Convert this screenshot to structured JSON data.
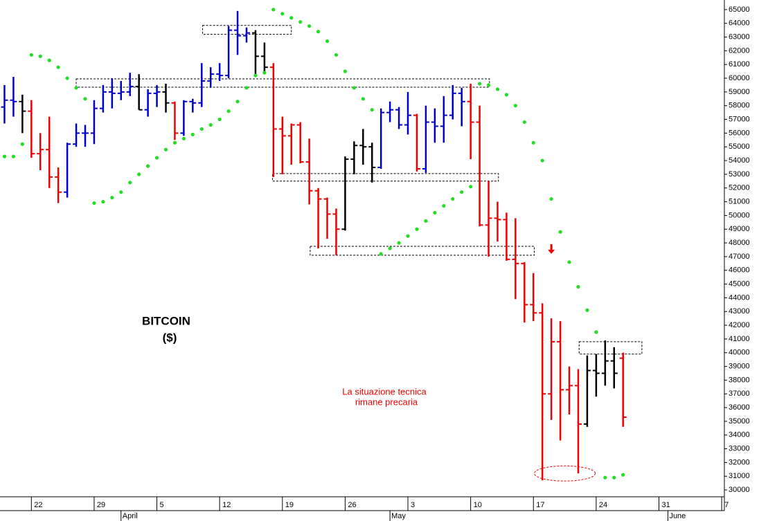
{
  "chart_data": {
    "type": "ohlc",
    "title": "BITCOIN",
    "unit": "($)",
    "annotation": [
      "La situazione tecnica",
      "rimane precaria"
    ],
    "x": [
      -3,
      -2,
      -1,
      0,
      1,
      2,
      3,
      4,
      5,
      6,
      7,
      8,
      9,
      10,
      11,
      12,
      13,
      14,
      15,
      16,
      17,
      18,
      19,
      20,
      21,
      22,
      23,
      24,
      25,
      26,
      27,
      28,
      29,
      30,
      31,
      32,
      33,
      34,
      35,
      36,
      37,
      38,
      39,
      40,
      41,
      42,
      43,
      44,
      45,
      46,
      47,
      48,
      49,
      50,
      51,
      52,
      53,
      54,
      55,
      56,
      57,
      58,
      59,
      60,
      61,
      62,
      63,
      64,
      65,
      66
    ],
    "ohlc": {
      "open": [
        57900,
        58400,
        58300,
        57600,
        54500,
        54800,
        52800,
        51700,
        55200,
        56000,
        56000,
        57800,
        59000,
        58900,
        59000,
        59400,
        57700,
        58900,
        59000,
        58200,
        56000,
        58300,
        58200,
        59800,
        60300,
        60200,
        63500,
        63100,
        63300,
        61600,
        60800,
        56300,
        55800,
        56600,
        53900,
        51800,
        51200,
        50100,
        49000,
        54100,
        55100,
        55000,
        53500,
        57500,
        57700,
        56600,
        57300,
        53400,
        56800,
        56500,
        57300,
        58900,
        58300,
        56800,
        49300,
        49800,
        49700,
        46800,
        46500,
        43500,
        42900,
        37000,
        40800,
        37300,
        37600,
        34800,
        38700,
        38500,
        39400,
        39600
      ],
      "high": [
        59500,
        60100,
        58800,
        58400,
        56000,
        57200,
        53500,
        55300,
        56700,
        56600,
        58400,
        59500,
        60000,
        59800,
        60400,
        60300,
        59200,
        59500,
        59600,
        58300,
        58400,
        58500,
        61100,
        60800,
        61100,
        63800,
        64900,
        63700,
        63500,
        62600,
        61100,
        57200,
        56700,
        56800,
        55600,
        52000,
        51300,
        50500,
        54300,
        55400,
        56300,
        55300,
        57800,
        58300,
        57900,
        59000,
        57400,
        58000,
        57800,
        58700,
        59500,
        59300,
        59600,
        58000,
        52500,
        51000,
        50200,
        49800,
        46600,
        45800,
        43600,
        42500,
        42300,
        39000,
        38800,
        39800,
        39900,
        40900,
        40400,
        40000
      ],
      "low": [
        56700,
        57200,
        56000,
        54200,
        53300,
        52000,
        50900,
        51300,
        55000,
        55000,
        55200,
        57500,
        57800,
        58400,
        58700,
        57700,
        57200,
        57900,
        57500,
        55500,
        55800,
        57500,
        57900,
        59300,
        59800,
        60000,
        61700,
        62600,
        60200,
        60300,
        52800,
        53000,
        53700,
        53800,
        50800,
        47600,
        48300,
        47100,
        48900,
        53000,
        53700,
        52400,
        53400,
        56800,
        56300,
        55900,
        53200,
        53100,
        55300,
        55300,
        57000,
        56500,
        54100,
        49200,
        47000,
        48100,
        46700,
        43900,
        42200,
        42300,
        30700,
        35100,
        33600,
        35500,
        31200,
        34600,
        36800,
        37600,
        37400,
        34600
      ],
      "close": [
        58400,
        58300,
        57600,
        54500,
        54800,
        52800,
        51700,
        55200,
        56000,
        56000,
        57800,
        59000,
        58900,
        59000,
        59400,
        57700,
        58900,
        59000,
        58200,
        56000,
        58300,
        58200,
        59800,
        60300,
        60200,
        63500,
        63100,
        63300,
        61600,
        60800,
        56300,
        55800,
        56600,
        53900,
        51800,
        51200,
        50100,
        49000,
        54100,
        55100,
        55000,
        53500,
        57500,
        57700,
        56600,
        57300,
        53400,
        56800,
        56500,
        57300,
        58900,
        58300,
        56800,
        49300,
        49800,
        49700,
        46800,
        46500,
        43500,
        42900,
        37000,
        40800,
        37300,
        37600,
        34800,
        38700,
        38500,
        39400,
        38500,
        35300
      ],
      "colors": [
        "#0000cc",
        "#0000cc",
        "#000000",
        "#ee0000",
        "#ee0000",
        "#ee0000",
        "#ee0000",
        "#0000cc",
        "#0000cc",
        "#0000cc",
        "#0000cc",
        "#0000cc",
        "#0000cc",
        "#0000cc",
        "#0000cc",
        "#000000",
        "#0000cc",
        "#0000cc",
        "#000000",
        "#ee0000",
        "#0000cc",
        "#0000cc",
        "#0000cc",
        "#0000cc",
        "#0000cc",
        "#0000cc",
        "#0000cc",
        "#0000cc",
        "#000000",
        "#000000",
        "#ee0000",
        "#ee0000",
        "#ee0000",
        "#ee0000",
        "#ee0000",
        "#ee0000",
        "#ee0000",
        "#ee0000",
        "#000000",
        "#000000",
        "#000000",
        "#000000",
        "#0000cc",
        "#0000cc",
        "#0000cc",
        "#0000cc",
        "#ee0000",
        "#0000cc",
        "#0000cc",
        "#0000cc",
        "#0000cc",
        "#0000cc",
        "#ee0000",
        "#ee0000",
        "#ee0000",
        "#ee0000",
        "#ee0000",
        "#ee0000",
        "#ee0000",
        "#ee0000",
        "#ee0000",
        "#ee0000",
        "#ee0000",
        "#ee0000",
        "#ee0000",
        "#000000",
        "#000000",
        "#000000",
        "#000000",
        "#ee0000"
      ]
    },
    "sar": {
      "color": "#22dd22",
      "values": [
        54300,
        54300,
        55200,
        61700,
        61600,
        61300,
        60800,
        60000,
        59300,
        58500,
        50900,
        51000,
        51300,
        51700,
        52400,
        53000,
        53600,
        54200,
        54800,
        55300,
        55600,
        55900,
        56300,
        56600,
        57000,
        57600,
        58300,
        59300,
        60200,
        60400,
        65000,
        64700,
        64400,
        64100,
        63800,
        63400,
        62700,
        61700,
        60500,
        59300,
        58500,
        57700,
        47200,
        47600,
        48000,
        48500,
        49000,
        49600,
        50200,
        50700,
        51200,
        51700,
        52100,
        59600,
        59500,
        59200,
        58800,
        58000,
        56800,
        55300,
        54000,
        51200,
        48800,
        46600,
        44800,
        43100,
        41500,
        30900,
        30900,
        31100
      ]
    },
    "zones": [
      {
        "x": [
          19.1,
          29
        ],
        "y": [
          63200,
          63850
        ]
      },
      {
        "x": [
          5,
          51.1
        ],
        "y": [
          59350,
          59950
        ]
      },
      {
        "x": [
          26.9,
          52.1
        ],
        "y": [
          52500,
          53050
        ]
      },
      {
        "x": [
          31.1,
          56.1
        ],
        "y": [
          47100,
          47750
        ]
      },
      {
        "x": [
          61.1,
          68.1
        ],
        "y": [
          39900,
          40800
        ]
      }
    ],
    "ellipse": {
      "x": [
        56.1,
        62.9
      ],
      "y": [
        30650,
        31750
      ]
    },
    "arrow": {
      "x": 58,
      "y": [
        47900,
        47200
      ]
    },
    "xlim": [
      -3.5,
      77.3
    ],
    "ylim": [
      29500,
      65700
    ],
    "xticks": [
      {
        "value": 0,
        "label": "22"
      },
      {
        "value": 7,
        "label": "29"
      },
      {
        "value": 14,
        "label": "5"
      },
      {
        "value": 21,
        "label": "12"
      },
      {
        "value": 28,
        "label": "19"
      },
      {
        "value": 35,
        "label": "26"
      },
      {
        "value": 42,
        "label": "3"
      },
      {
        "value": 49,
        "label": "10"
      },
      {
        "value": 56,
        "label": "17"
      },
      {
        "value": 63,
        "label": "24"
      },
      {
        "value": 70,
        "label": "31"
      },
      {
        "value": 77,
        "label": "7"
      }
    ],
    "month_ticks": [
      {
        "value": 10,
        "label": "April"
      },
      {
        "value": 40,
        "label": "May"
      },
      {
        "value": 71,
        "label": "June"
      }
    ],
    "yticks": [
      30000,
      31000,
      32000,
      33000,
      34000,
      35000,
      36000,
      37000,
      38000,
      39000,
      40000,
      41000,
      42000,
      43000,
      44000,
      45000,
      46000,
      47000,
      48000,
      49000,
      50000,
      51000,
      52000,
      53000,
      54000,
      55000,
      56000,
      57000,
      58000,
      59000,
      60000,
      61000,
      62000,
      63000,
      64000,
      65000
    ]
  }
}
